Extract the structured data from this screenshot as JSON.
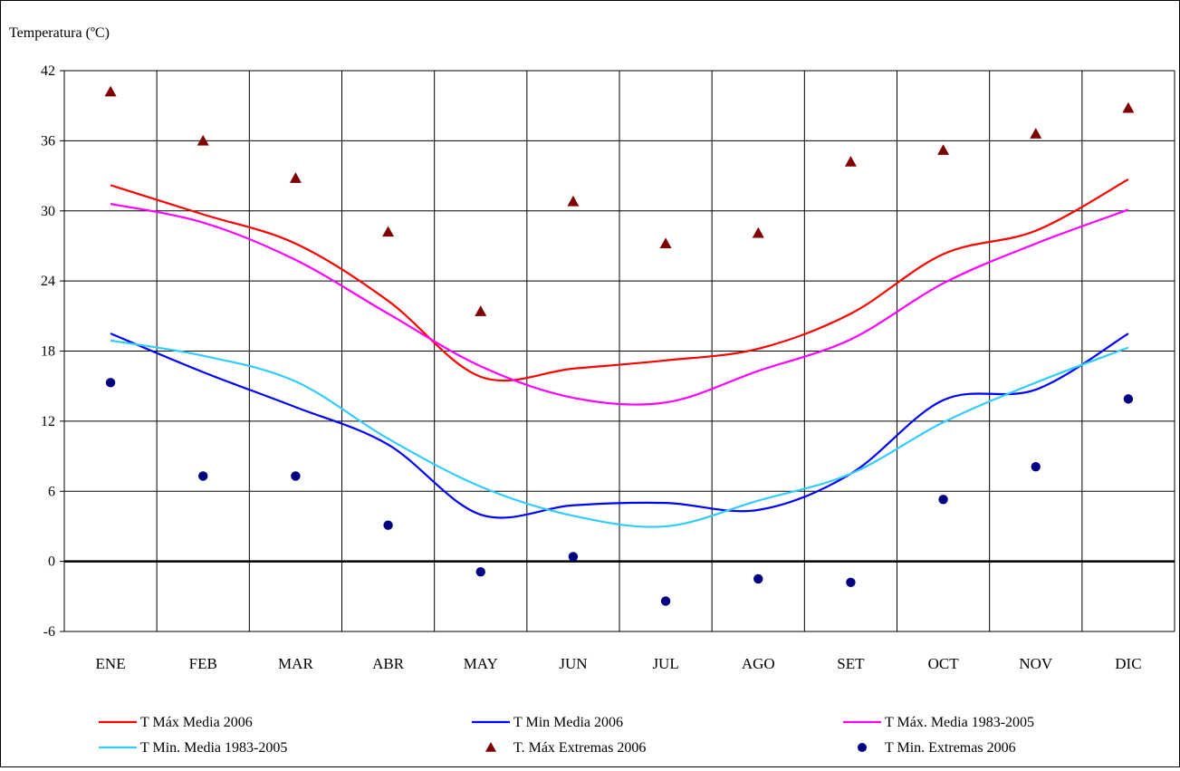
{
  "chart_data": {
    "type": "line",
    "title": "",
    "ylabel": "Temperatura  (ºC)",
    "xlabel": "",
    "categories": [
      "ENE",
      "FEB",
      "MAR",
      "ABR",
      "MAY",
      "JUN",
      "JUL",
      "AGO",
      "SET",
      "OCT",
      "NOV",
      "DIC"
    ],
    "ylim": [
      -6,
      42
    ],
    "yticks": [
      -6,
      0,
      6,
      12,
      18,
      24,
      30,
      36,
      42
    ],
    "grid": true,
    "legend_position": "bottom",
    "series": [
      {
        "name": "T Máx Media 2006",
        "kind": "line",
        "color": "#ff0000",
        "values": [
          32.2,
          29.7,
          27.2,
          22.3,
          15.8,
          16.5,
          17.2,
          18.2,
          21.2,
          26.3,
          28.3,
          32.7
        ]
      },
      {
        "name": "T Min Media 2006",
        "kind": "line",
        "color": "#0000ff",
        "values": [
          19.5,
          16.2,
          13.2,
          10.0,
          4.0,
          4.8,
          5.0,
          4.4,
          7.5,
          13.8,
          14.7,
          19.5
        ]
      },
      {
        "name": "T Máx. Media 1983-2005",
        "kind": "line",
        "color": "#ff00ff",
        "values": [
          30.6,
          29.0,
          25.8,
          21.2,
          16.7,
          14.0,
          13.6,
          16.3,
          19.0,
          23.8,
          27.2,
          30.1
        ]
      },
      {
        "name": "T Min. Media 1983-2005",
        "kind": "line",
        "color": "#33ccff",
        "values": [
          18.9,
          17.6,
          15.4,
          10.5,
          6.4,
          3.9,
          3.0,
          5.2,
          7.5,
          11.9,
          15.3,
          18.3
        ]
      },
      {
        "name": "T. Máx Extremas 2006",
        "kind": "marker-triangle",
        "color": "#800000",
        "values": [
          40.2,
          36.0,
          32.8,
          28.2,
          21.4,
          30.8,
          27.2,
          28.1,
          34.2,
          35.2,
          36.6,
          38.8
        ]
      },
      {
        "name": "T Min. Extremas 2006",
        "kind": "marker-circle",
        "color": "#000080",
        "values": [
          15.3,
          7.3,
          7.3,
          3.1,
          -0.9,
          0.4,
          -3.4,
          -1.5,
          -1.8,
          5.3,
          8.1,
          13.9
        ]
      }
    ]
  }
}
